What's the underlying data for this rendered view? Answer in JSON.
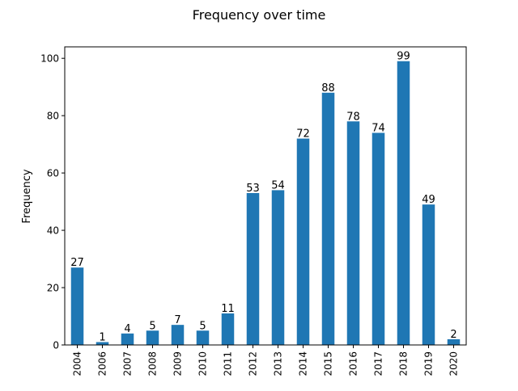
{
  "chart_data": {
    "type": "bar",
    "title": "Frequency over time",
    "xlabel": "",
    "ylabel": "Frequency",
    "categories": [
      "2004",
      "2006",
      "2007",
      "2008",
      "2009",
      "2010",
      "2011",
      "2012",
      "2013",
      "2014",
      "2015",
      "2016",
      "2017",
      "2018",
      "2019",
      "2020"
    ],
    "values": [
      27,
      1,
      4,
      5,
      7,
      5,
      11,
      53,
      54,
      72,
      88,
      78,
      74,
      99,
      49,
      2
    ],
    "ylim": [
      0,
      104
    ],
    "yticks": [
      0,
      20,
      40,
      60,
      80,
      100
    ],
    "grid": false,
    "legend": "none",
    "bar_color": "#1f77b4"
  }
}
